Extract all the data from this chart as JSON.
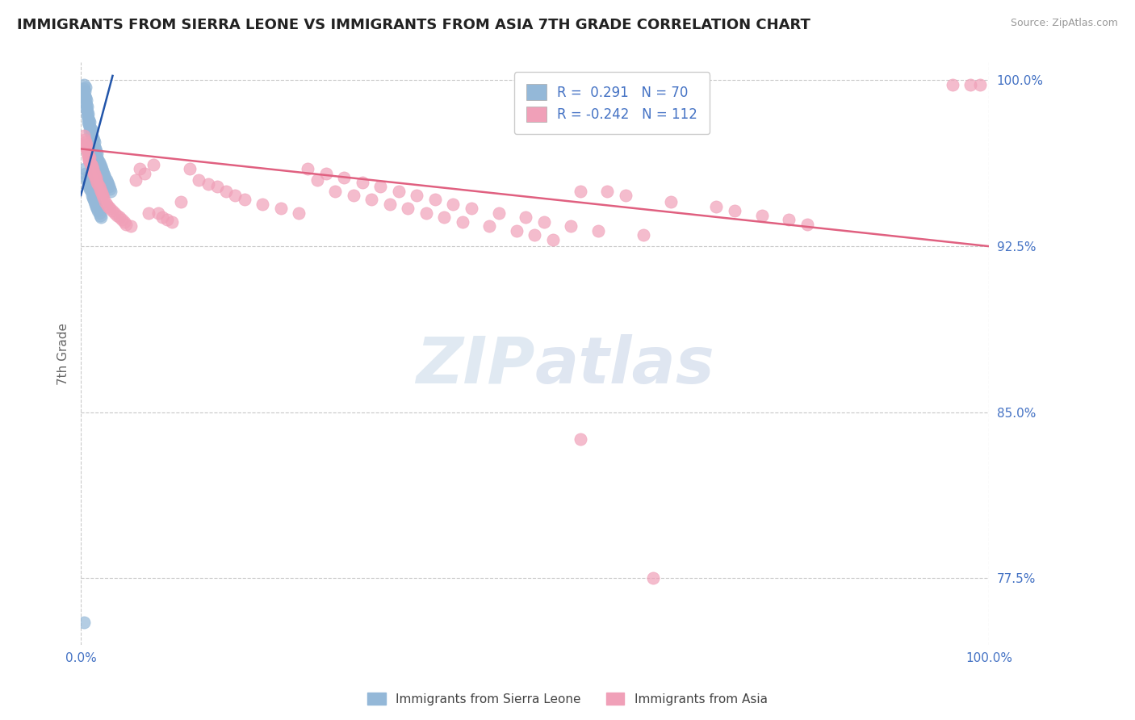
{
  "title": "IMMIGRANTS FROM SIERRA LEONE VS IMMIGRANTS FROM ASIA 7TH GRADE CORRELATION CHART",
  "source": "Source: ZipAtlas.com",
  "ylabel": "7th Grade",
  "xmin": 0.0,
  "xmax": 1.0,
  "ymin": 0.745,
  "ymax": 1.008,
  "yticks": [
    0.775,
    0.85,
    0.925,
    1.0
  ],
  "ytick_labels": [
    "77.5%",
    "85.0%",
    "92.5%",
    "100.0%"
  ],
  "title_fontsize": 13,
  "axis_label_color": "#4472c4",
  "grid_color": "#c8c8c8",
  "blue_color": "#94b8d8",
  "pink_color": "#f0a0b8",
  "blue_line_color": "#2255aa",
  "pink_line_color": "#e06080",
  "legend_blue_r": "0.291",
  "legend_blue_n": "70",
  "legend_pink_r": "-0.242",
  "legend_pink_n": "112",
  "legend_label_blue": "Immigrants from Sierra Leone",
  "legend_label_pink": "Immigrants from Asia",
  "blue_scatter_x": [
    0.002,
    0.003,
    0.003,
    0.004,
    0.004,
    0.005,
    0.005,
    0.005,
    0.006,
    0.006,
    0.006,
    0.007,
    0.007,
    0.007,
    0.008,
    0.008,
    0.008,
    0.009,
    0.009,
    0.01,
    0.01,
    0.01,
    0.011,
    0.011,
    0.012,
    0.012,
    0.013,
    0.013,
    0.014,
    0.015,
    0.015,
    0.016,
    0.017,
    0.018,
    0.018,
    0.019,
    0.02,
    0.021,
    0.022,
    0.023,
    0.024,
    0.025,
    0.026,
    0.027,
    0.028,
    0.029,
    0.03,
    0.031,
    0.032,
    0.033,
    0.004,
    0.005,
    0.006,
    0.007,
    0.008,
    0.009,
    0.01,
    0.011,
    0.012,
    0.013,
    0.014,
    0.015,
    0.016,
    0.017,
    0.018,
    0.019,
    0.02,
    0.021,
    0.022,
    0.003
  ],
  "blue_scatter_y": [
    0.994,
    0.996,
    0.998,
    0.995,
    0.993,
    0.997,
    0.992,
    0.99,
    0.991,
    0.989,
    0.987,
    0.988,
    0.986,
    0.984,
    0.985,
    0.983,
    0.981,
    0.982,
    0.98,
    0.981,
    0.979,
    0.977,
    0.978,
    0.976,
    0.977,
    0.975,
    0.974,
    0.972,
    0.973,
    0.972,
    0.97,
    0.969,
    0.968,
    0.967,
    0.965,
    0.964,
    0.963,
    0.962,
    0.961,
    0.96,
    0.959,
    0.958,
    0.957,
    0.956,
    0.955,
    0.954,
    0.953,
    0.952,
    0.951,
    0.95,
    0.96,
    0.958,
    0.956,
    0.955,
    0.953,
    0.952,
    0.951,
    0.95,
    0.948,
    0.947,
    0.946,
    0.945,
    0.944,
    0.943,
    0.942,
    0.941,
    0.94,
    0.939,
    0.938,
    0.755
  ],
  "pink_scatter_x": [
    0.003,
    0.004,
    0.005,
    0.005,
    0.006,
    0.007,
    0.007,
    0.008,
    0.008,
    0.009,
    0.009,
    0.01,
    0.01,
    0.011,
    0.012,
    0.012,
    0.013,
    0.014,
    0.015,
    0.016,
    0.017,
    0.018,
    0.019,
    0.02,
    0.021,
    0.022,
    0.023,
    0.024,
    0.025,
    0.027,
    0.028,
    0.03,
    0.032,
    0.035,
    0.037,
    0.04,
    0.043,
    0.045,
    0.048,
    0.05,
    0.055,
    0.06,
    0.065,
    0.07,
    0.075,
    0.08,
    0.085,
    0.09,
    0.095,
    0.1,
    0.11,
    0.12,
    0.13,
    0.14,
    0.15,
    0.16,
    0.17,
    0.18,
    0.2,
    0.22,
    0.24,
    0.26,
    0.28,
    0.3,
    0.32,
    0.34,
    0.36,
    0.38,
    0.4,
    0.42,
    0.45,
    0.48,
    0.5,
    0.52,
    0.55,
    0.58,
    0.6,
    0.65,
    0.7,
    0.72,
    0.75,
    0.78,
    0.8,
    0.25,
    0.27,
    0.29,
    0.31,
    0.33,
    0.35,
    0.37,
    0.39,
    0.41,
    0.43,
    0.46,
    0.49,
    0.51,
    0.54,
    0.57,
    0.62,
    0.98,
    0.96,
    0.99,
    0.005,
    0.007,
    0.008,
    0.009,
    0.011,
    0.013,
    0.015,
    0.017,
    0.55,
    0.63
  ],
  "pink_scatter_y": [
    0.975,
    0.973,
    0.972,
    0.97,
    0.971,
    0.969,
    0.968,
    0.967,
    0.966,
    0.965,
    0.964,
    0.965,
    0.963,
    0.962,
    0.961,
    0.96,
    0.959,
    0.958,
    0.957,
    0.956,
    0.955,
    0.954,
    0.953,
    0.952,
    0.951,
    0.95,
    0.949,
    0.948,
    0.947,
    0.945,
    0.944,
    0.943,
    0.942,
    0.941,
    0.94,
    0.939,
    0.938,
    0.937,
    0.936,
    0.935,
    0.934,
    0.955,
    0.96,
    0.958,
    0.94,
    0.962,
    0.94,
    0.938,
    0.937,
    0.936,
    0.945,
    0.96,
    0.955,
    0.953,
    0.952,
    0.95,
    0.948,
    0.946,
    0.944,
    0.942,
    0.94,
    0.955,
    0.95,
    0.948,
    0.946,
    0.944,
    0.942,
    0.94,
    0.938,
    0.936,
    0.934,
    0.932,
    0.93,
    0.928,
    0.95,
    0.95,
    0.948,
    0.945,
    0.943,
    0.941,
    0.939,
    0.937,
    0.935,
    0.96,
    0.958,
    0.956,
    0.954,
    0.952,
    0.95,
    0.948,
    0.946,
    0.944,
    0.942,
    0.94,
    0.938,
    0.936,
    0.934,
    0.932,
    0.93,
    0.998,
    0.998,
    0.998,
    0.97,
    0.968,
    0.966,
    0.964,
    0.962,
    0.96,
    0.958,
    0.956,
    0.838,
    0.775
  ],
  "pink_line_x0": 0.0,
  "pink_line_y0": 0.969,
  "pink_line_x1": 1.0,
  "pink_line_y1": 0.925,
  "blue_line_x0": 0.0,
  "blue_line_y0": 0.948,
  "blue_line_x1": 0.035,
  "blue_line_y1": 1.002
}
